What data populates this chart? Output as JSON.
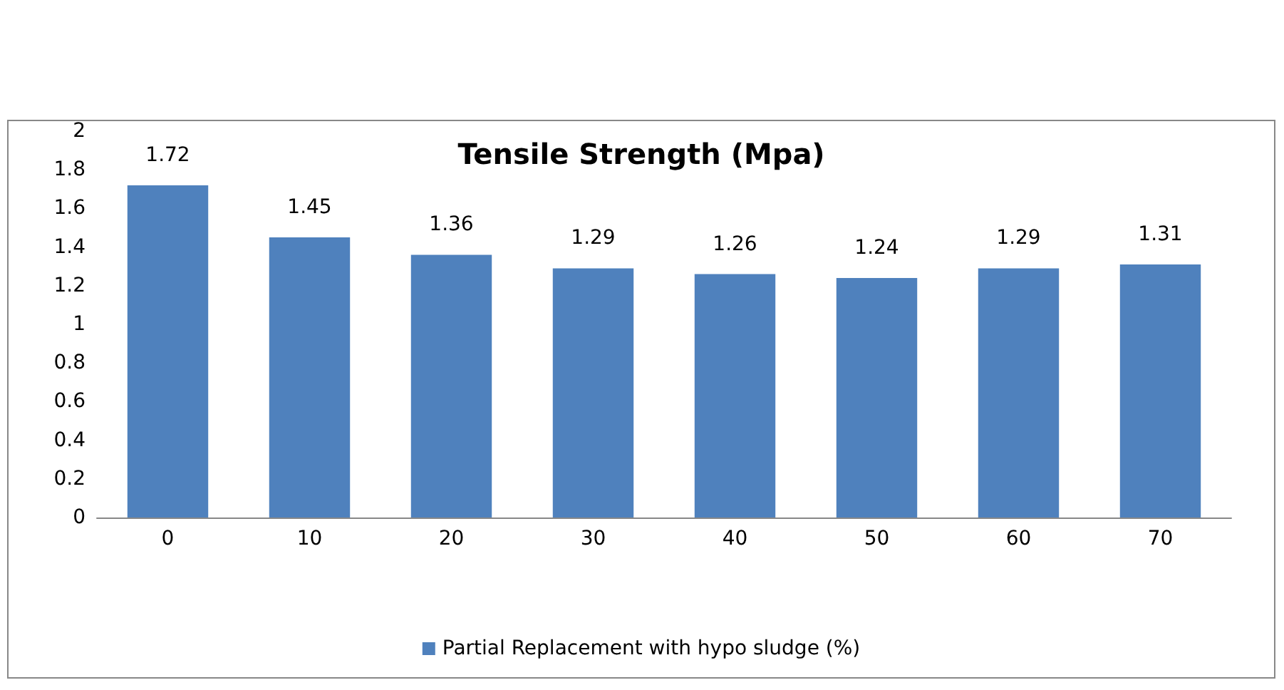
{
  "chart_data": {
    "type": "bar",
    "title": "Tensile Strength (Mpa)",
    "categories": [
      "0",
      "10",
      "20",
      "30",
      "40",
      "50",
      "60",
      "70"
    ],
    "series": [
      {
        "name": "Partial Replacement with hypo sludge (%)",
        "color": "#4f81bd",
        "values": [
          1.72,
          1.45,
          1.36,
          1.29,
          1.26,
          1.24,
          1.29,
          1.31
        ]
      }
    ],
    "ylim": [
      0,
      2
    ],
    "yticks": [
      0,
      0.2,
      0.4,
      0.6,
      0.8,
      1,
      1.2,
      1.4,
      1.6,
      1.8,
      2
    ],
    "data_labels": true,
    "grid": false,
    "legend": "bottom"
  }
}
